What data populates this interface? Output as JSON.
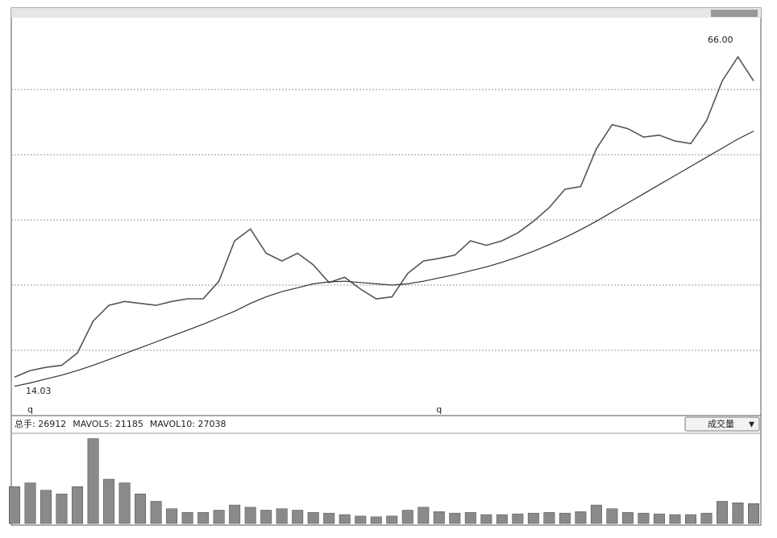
{
  "chart_data": [
    {
      "type": "line",
      "series": [
        {
          "name": "price",
          "color": "#555555",
          "values": [
            15.9,
            16.9,
            17.4,
            17.7,
            19.6,
            24.5,
            26.9,
            27.5,
            27.2,
            26.9,
            27.5,
            27.9,
            27.9,
            30.6,
            36.8,
            38.6,
            34.9,
            33.7,
            34.9,
            33.1,
            30.4,
            31.2,
            29.4,
            27.9,
            28.2,
            31.8,
            33.7,
            34.1,
            34.6,
            36.8,
            36.1,
            36.8,
            38.0,
            39.8,
            41.9,
            44.7,
            45.1,
            50.9,
            54.6,
            54.0,
            52.7,
            53.0,
            52.1,
            51.7,
            55.2,
            61.3,
            65.0,
            61.3
          ]
        },
        {
          "name": "ma",
          "color": "#333333",
          "values": [
            14.5,
            15,
            15.6,
            16.2,
            16.9,
            17.7,
            18.6,
            19.5,
            20.4,
            21.3,
            22.2,
            23.1,
            24,
            25,
            26,
            27.2,
            28.2,
            29,
            29.6,
            30.2,
            30.5,
            30.6,
            30.4,
            30.2,
            30,
            30.2,
            30.6,
            31.1,
            31.6,
            32.2,
            32.8,
            33.5,
            34.3,
            35.2,
            36.2,
            37.3,
            38.5,
            39.8,
            41.2,
            42.6,
            44,
            45.4,
            46.8,
            48.2,
            49.6,
            51,
            52.4,
            53.6
          ]
        }
      ],
      "ylim": [
        10,
        71
      ],
      "yticks": [
        20,
        30,
        40,
        50,
        60
      ],
      "grid": true,
      "annotations": [
        {
          "text": "66.00",
          "index": 46
        },
        {
          "text": "14.03",
          "index": 0
        }
      ],
      "markers": [
        {
          "text": "q",
          "index": 1
        },
        {
          "text": "q",
          "index": 27
        }
      ]
    },
    {
      "type": "bar",
      "header": [
        "总手: 26912",
        "MAVOL5: 21185",
        "MAVOL10: 27038"
      ],
      "selector": "成交量",
      "color": "#8a8a8a",
      "values": [
        50000,
        55000,
        45000,
        40000,
        50000,
        115000,
        60000,
        55000,
        40000,
        30000,
        20000,
        15000,
        15000,
        18000,
        25000,
        22000,
        18000,
        20000,
        18000,
        15000,
        14000,
        12000,
        10000,
        9000,
        10000,
        18000,
        22000,
        16000,
        14000,
        15000,
        12000,
        12000,
        13000,
        14000,
        15000,
        14000,
        16000,
        25000,
        20000,
        15000,
        14000,
        13000,
        12000,
        12000,
        14000,
        30000,
        28000,
        26912
      ],
      "ylim": [
        0,
        120000
      ]
    }
  ]
}
